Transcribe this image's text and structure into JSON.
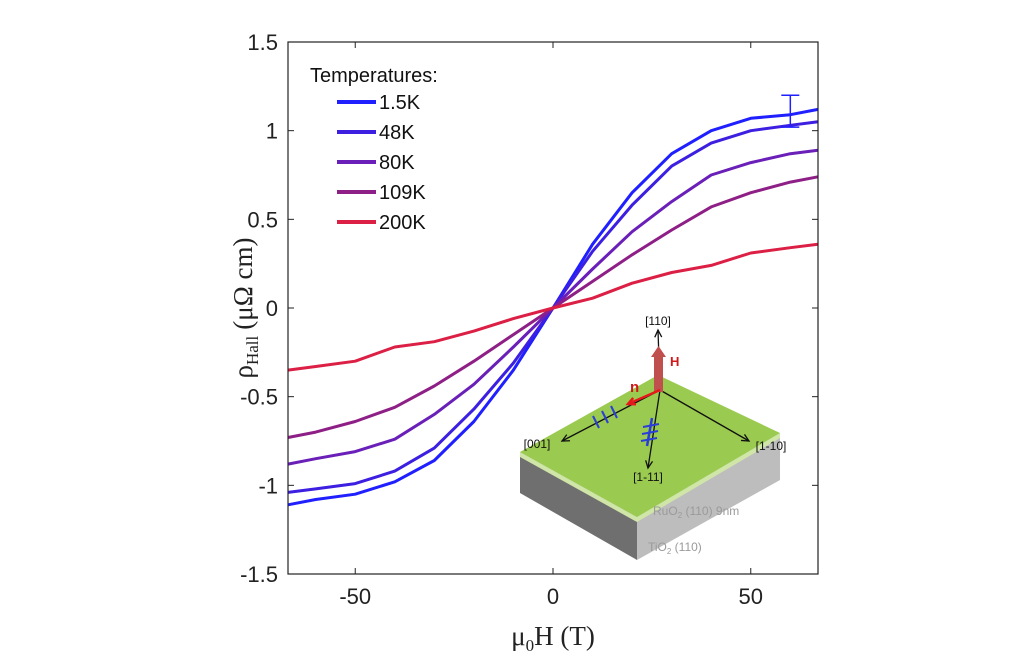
{
  "chart_data": {
    "type": "line",
    "title": "",
    "xlabel": "μ0H (T)",
    "xlabel_main": "μ",
    "xlabel_sub": "0",
    "xlabel_rest": "H (T)",
    "ylabel_main": "ρ",
    "ylabel_sub": "Hall",
    "ylabel_rest": "(μΩ cm)",
    "xlim": [
      -67,
      67
    ],
    "ylim": [
      -1.5,
      1.5
    ],
    "xticks": [
      -50,
      0,
      50
    ],
    "yticks": [
      -1.5,
      -1,
      -0.5,
      0,
      0.5,
      1,
      1.5
    ],
    "xtick_labels": [
      "-50",
      "0",
      "50"
    ],
    "ytick_labels": [
      "-1.5",
      "-1",
      "-0.5",
      "0",
      "0.5",
      "1",
      "1.5"
    ],
    "grid": false,
    "legend": {
      "title": "Temperatures:",
      "placement": "top-left"
    },
    "x": [
      -67,
      -60,
      -50,
      -40,
      -30,
      -20,
      -10,
      0,
      10,
      20,
      30,
      40,
      50,
      60,
      67
    ],
    "series": [
      {
        "name": "1.5K",
        "color": "#1f1fff",
        "values": [
          -1.11,
          -1.08,
          -1.05,
          -0.98,
          -0.86,
          -0.64,
          -0.35,
          0,
          0.36,
          0.65,
          0.87,
          1.0,
          1.07,
          1.09,
          1.12
        ]
      },
      {
        "name": "48K",
        "color": "#3c1fe0",
        "values": [
          -1.04,
          -1.02,
          -0.99,
          -0.92,
          -0.79,
          -0.57,
          -0.31,
          0,
          0.32,
          0.58,
          0.8,
          0.93,
          1.0,
          1.03,
          1.05
        ]
      },
      {
        "name": "80K",
        "color": "#6a1fb8",
        "values": [
          -0.88,
          -0.85,
          -0.81,
          -0.74,
          -0.6,
          -0.43,
          -0.22,
          0,
          0.22,
          0.43,
          0.6,
          0.75,
          0.82,
          0.87,
          0.89
        ]
      },
      {
        "name": "109K",
        "color": "#8e1f86",
        "values": [
          -0.73,
          -0.7,
          -0.64,
          -0.56,
          -0.44,
          -0.3,
          -0.15,
          0,
          0.15,
          0.3,
          0.44,
          0.57,
          0.65,
          0.71,
          0.74
        ]
      },
      {
        "name": "200K",
        "color": "#dc1f44",
        "values": [
          -0.35,
          -0.33,
          -0.3,
          -0.22,
          -0.19,
          -0.13,
          -0.06,
          0,
          0.055,
          0.14,
          0.2,
          0.24,
          0.31,
          0.34,
          0.36
        ]
      }
    ],
    "error_bar": {
      "x": 60,
      "y_low": 1.02,
      "y_high": 1.2,
      "color": "#1f1fff"
    },
    "inset": {
      "axis_110": "[110]",
      "axis_001": "[001]",
      "axis_1m11": "[1-11]",
      "axis_1m10": "[1-10]",
      "field_label": "H",
      "neel_label": "n",
      "film_label_a": "RuO",
      "film_label_sub": "2",
      "film_label_b": " (110) 9nm",
      "substrate_label_a": "TiO",
      "substrate_label_sub": "2",
      "substrate_label_b": " (110)",
      "film_color": "#9acb50",
      "field_color": "#c0504d",
      "neel_color": "#e41a1a",
      "stripe_color": "#2b3fd8"
    }
  }
}
